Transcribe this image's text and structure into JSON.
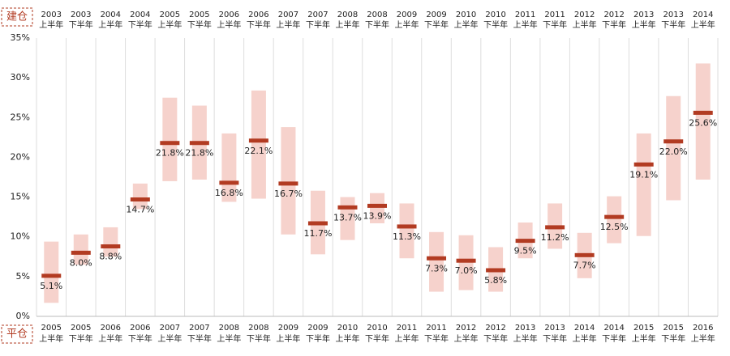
{
  "chart_data": {
    "type": "range",
    "open_label": "建仓",
    "close_label": "平仓",
    "open_periods": [
      {
        "year": "2003",
        "half": "上半年"
      },
      {
        "year": "2003",
        "half": "下半年"
      },
      {
        "year": "2004",
        "half": "上半年"
      },
      {
        "year": "2004",
        "half": "下半年"
      },
      {
        "year": "2005",
        "half": "上半年"
      },
      {
        "year": "2005",
        "half": "下半年"
      },
      {
        "year": "2006",
        "half": "上半年"
      },
      {
        "year": "2006",
        "half": "下半年"
      },
      {
        "year": "2007",
        "half": "上半年"
      },
      {
        "year": "2007",
        "half": "下半年"
      },
      {
        "year": "2008",
        "half": "上半年"
      },
      {
        "year": "2008",
        "half": "下半年"
      },
      {
        "year": "2009",
        "half": "上半年"
      },
      {
        "year": "2009",
        "half": "下半年"
      },
      {
        "year": "2010",
        "half": "上半年"
      },
      {
        "year": "2010",
        "half": "下半年"
      },
      {
        "year": "2011",
        "half": "上半年"
      },
      {
        "year": "2011",
        "half": "下半年"
      },
      {
        "year": "2012",
        "half": "上半年"
      },
      {
        "year": "2012",
        "half": "下半年"
      },
      {
        "year": "2013",
        "half": "上半年"
      },
      {
        "year": "2013",
        "half": "下半年"
      },
      {
        "year": "2014",
        "half": "上半年"
      }
    ],
    "close_periods": [
      {
        "year": "2005",
        "half": "上半年"
      },
      {
        "year": "2005",
        "half": "下半年"
      },
      {
        "year": "2006",
        "half": "上半年"
      },
      {
        "year": "2006",
        "half": "下半年"
      },
      {
        "year": "2007",
        "half": "上半年"
      },
      {
        "year": "2007",
        "half": "下半年"
      },
      {
        "year": "2008",
        "half": "上半年"
      },
      {
        "year": "2008",
        "half": "下半年"
      },
      {
        "year": "2009",
        "half": "上半年"
      },
      {
        "year": "2009",
        "half": "下半年"
      },
      {
        "year": "2010",
        "half": "上半年"
      },
      {
        "year": "2010",
        "half": "下半年"
      },
      {
        "year": "2011",
        "half": "上半年"
      },
      {
        "year": "2011",
        "half": "下半年"
      },
      {
        "year": "2012",
        "half": "上半年"
      },
      {
        "year": "2012",
        "half": "下半年"
      },
      {
        "year": "2013",
        "half": "上半年"
      },
      {
        "year": "2013",
        "half": "下半年"
      },
      {
        "year": "2014",
        "half": "上半年"
      },
      {
        "year": "2014",
        "half": "下半年"
      },
      {
        "year": "2015",
        "half": "上半年"
      },
      {
        "year": "2015",
        "half": "下半年"
      },
      {
        "year": "2016",
        "half": "上半年"
      }
    ],
    "median": [
      5.1,
      8.0,
      8.8,
      14.7,
      21.8,
      21.8,
      16.8,
      22.1,
      16.7,
      11.7,
      13.7,
      13.9,
      11.3,
      7.3,
      7.0,
      5.8,
      9.5,
      11.2,
      7.7,
      12.5,
      19.1,
      22.0,
      25.6
    ],
    "value_labels": [
      "5.1%",
      "8.0%",
      "8.8%",
      "14.7%",
      "21.8%",
      "21.8%",
      "16.8%",
      "22.1%",
      "16.7%",
      "11.7%",
      "13.7%",
      "13.9%",
      "11.3%",
      "7.3%",
      "7.0%",
      "5.8%",
      "9.5%",
      "11.2%",
      "7.7%",
      "12.5%",
      "19.1%",
      "22.0%",
      "25.6%"
    ],
    "low": [
      1.7,
      6.5,
      7.5,
      13.5,
      17.0,
      17.2,
      14.4,
      14.8,
      10.3,
      7.8,
      9.6,
      11.7,
      7.3,
      3.1,
      3.3,
      3.1,
      7.3,
      8.5,
      4.8,
      9.2,
      10.1,
      14.6,
      17.2
    ],
    "high": [
      9.4,
      10.3,
      11.2,
      16.7,
      27.5,
      26.5,
      23.0,
      28.4,
      23.8,
      15.8,
      15.0,
      15.5,
      14.2,
      10.6,
      10.2,
      8.7,
      11.8,
      14.2,
      10.5,
      15.1,
      23.0,
      27.7,
      31.8
    ],
    "range_color": "#f6d2cc",
    "median_color": "#b23b22",
    "ylim": [
      0,
      35
    ],
    "yticks": [
      {
        "value": 0,
        "label": "0%"
      },
      {
        "value": 5,
        "label": "5%"
      },
      {
        "value": 10,
        "label": "10%"
      },
      {
        "value": 15,
        "label": "15%"
      },
      {
        "value": 20,
        "label": "20%"
      },
      {
        "value": 25,
        "label": "25%"
      },
      {
        "value": 30,
        "label": "30%"
      },
      {
        "value": 35,
        "label": "35%"
      }
    ]
  }
}
